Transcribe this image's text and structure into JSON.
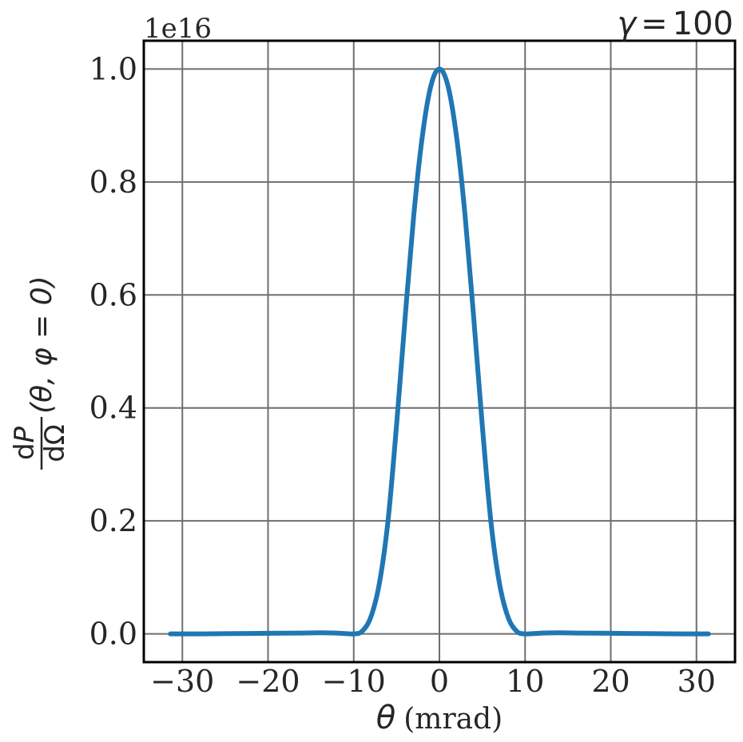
{
  "chart_data": {
    "type": "line",
    "title": "γ = 100",
    "title_parts": {
      "symbol": "γ",
      "equals": "=",
      "value": "100"
    },
    "offset_text": "1e16",
    "xlabel": "θ (mrad)",
    "xlabel_parts": {
      "symbol": "θ",
      "unit": "(mrad)"
    },
    "ylabel": "dP/dΩ (θ, φ = 0)",
    "ylabel_parts": {
      "num_d": "d",
      "num_var": "P",
      "den_d": "d",
      "den_var": "Ω",
      "args": "(θ, φ = 0)"
    },
    "xlim": [
      -34.5,
      34.5
    ],
    "ylim": [
      -0.05,
      1.05
    ],
    "xticks": [
      -30,
      -20,
      -10,
      0,
      10,
      20,
      30
    ],
    "xtick_labels": [
      "−30",
      "−20",
      "−10",
      "0",
      "10",
      "20",
      "30"
    ],
    "yticks": [
      0.0,
      0.2,
      0.4,
      0.6,
      0.8,
      1.0
    ],
    "ytick_labels": [
      "0.0",
      "0.2",
      "0.4",
      "0.6",
      "0.8",
      "1.0"
    ],
    "grid": true,
    "series": [
      {
        "color": "#1f77b4",
        "x": [
          -31.4,
          -28,
          -24,
          -20,
          -16,
          -14,
          -12,
          -10,
          -9,
          -8,
          -7,
          -6,
          -5,
          -4,
          -3,
          -2,
          -1,
          0,
          1,
          2,
          3,
          4,
          5,
          6,
          7,
          8,
          9,
          10,
          12,
          14,
          16,
          20,
          24,
          28,
          31.4
        ],
        "y": [
          0.0,
          0.0,
          0.0005,
          0.001,
          0.0015,
          0.002,
          0.0015,
          0.0,
          0.005,
          0.03,
          0.09,
          0.2,
          0.37,
          0.56,
          0.74,
          0.88,
          0.97,
          1.0,
          0.97,
          0.88,
          0.74,
          0.56,
          0.37,
          0.2,
          0.09,
          0.03,
          0.005,
          0.0,
          0.0015,
          0.002,
          0.0015,
          0.001,
          0.0005,
          0.0,
          0.0
        ]
      }
    ]
  }
}
